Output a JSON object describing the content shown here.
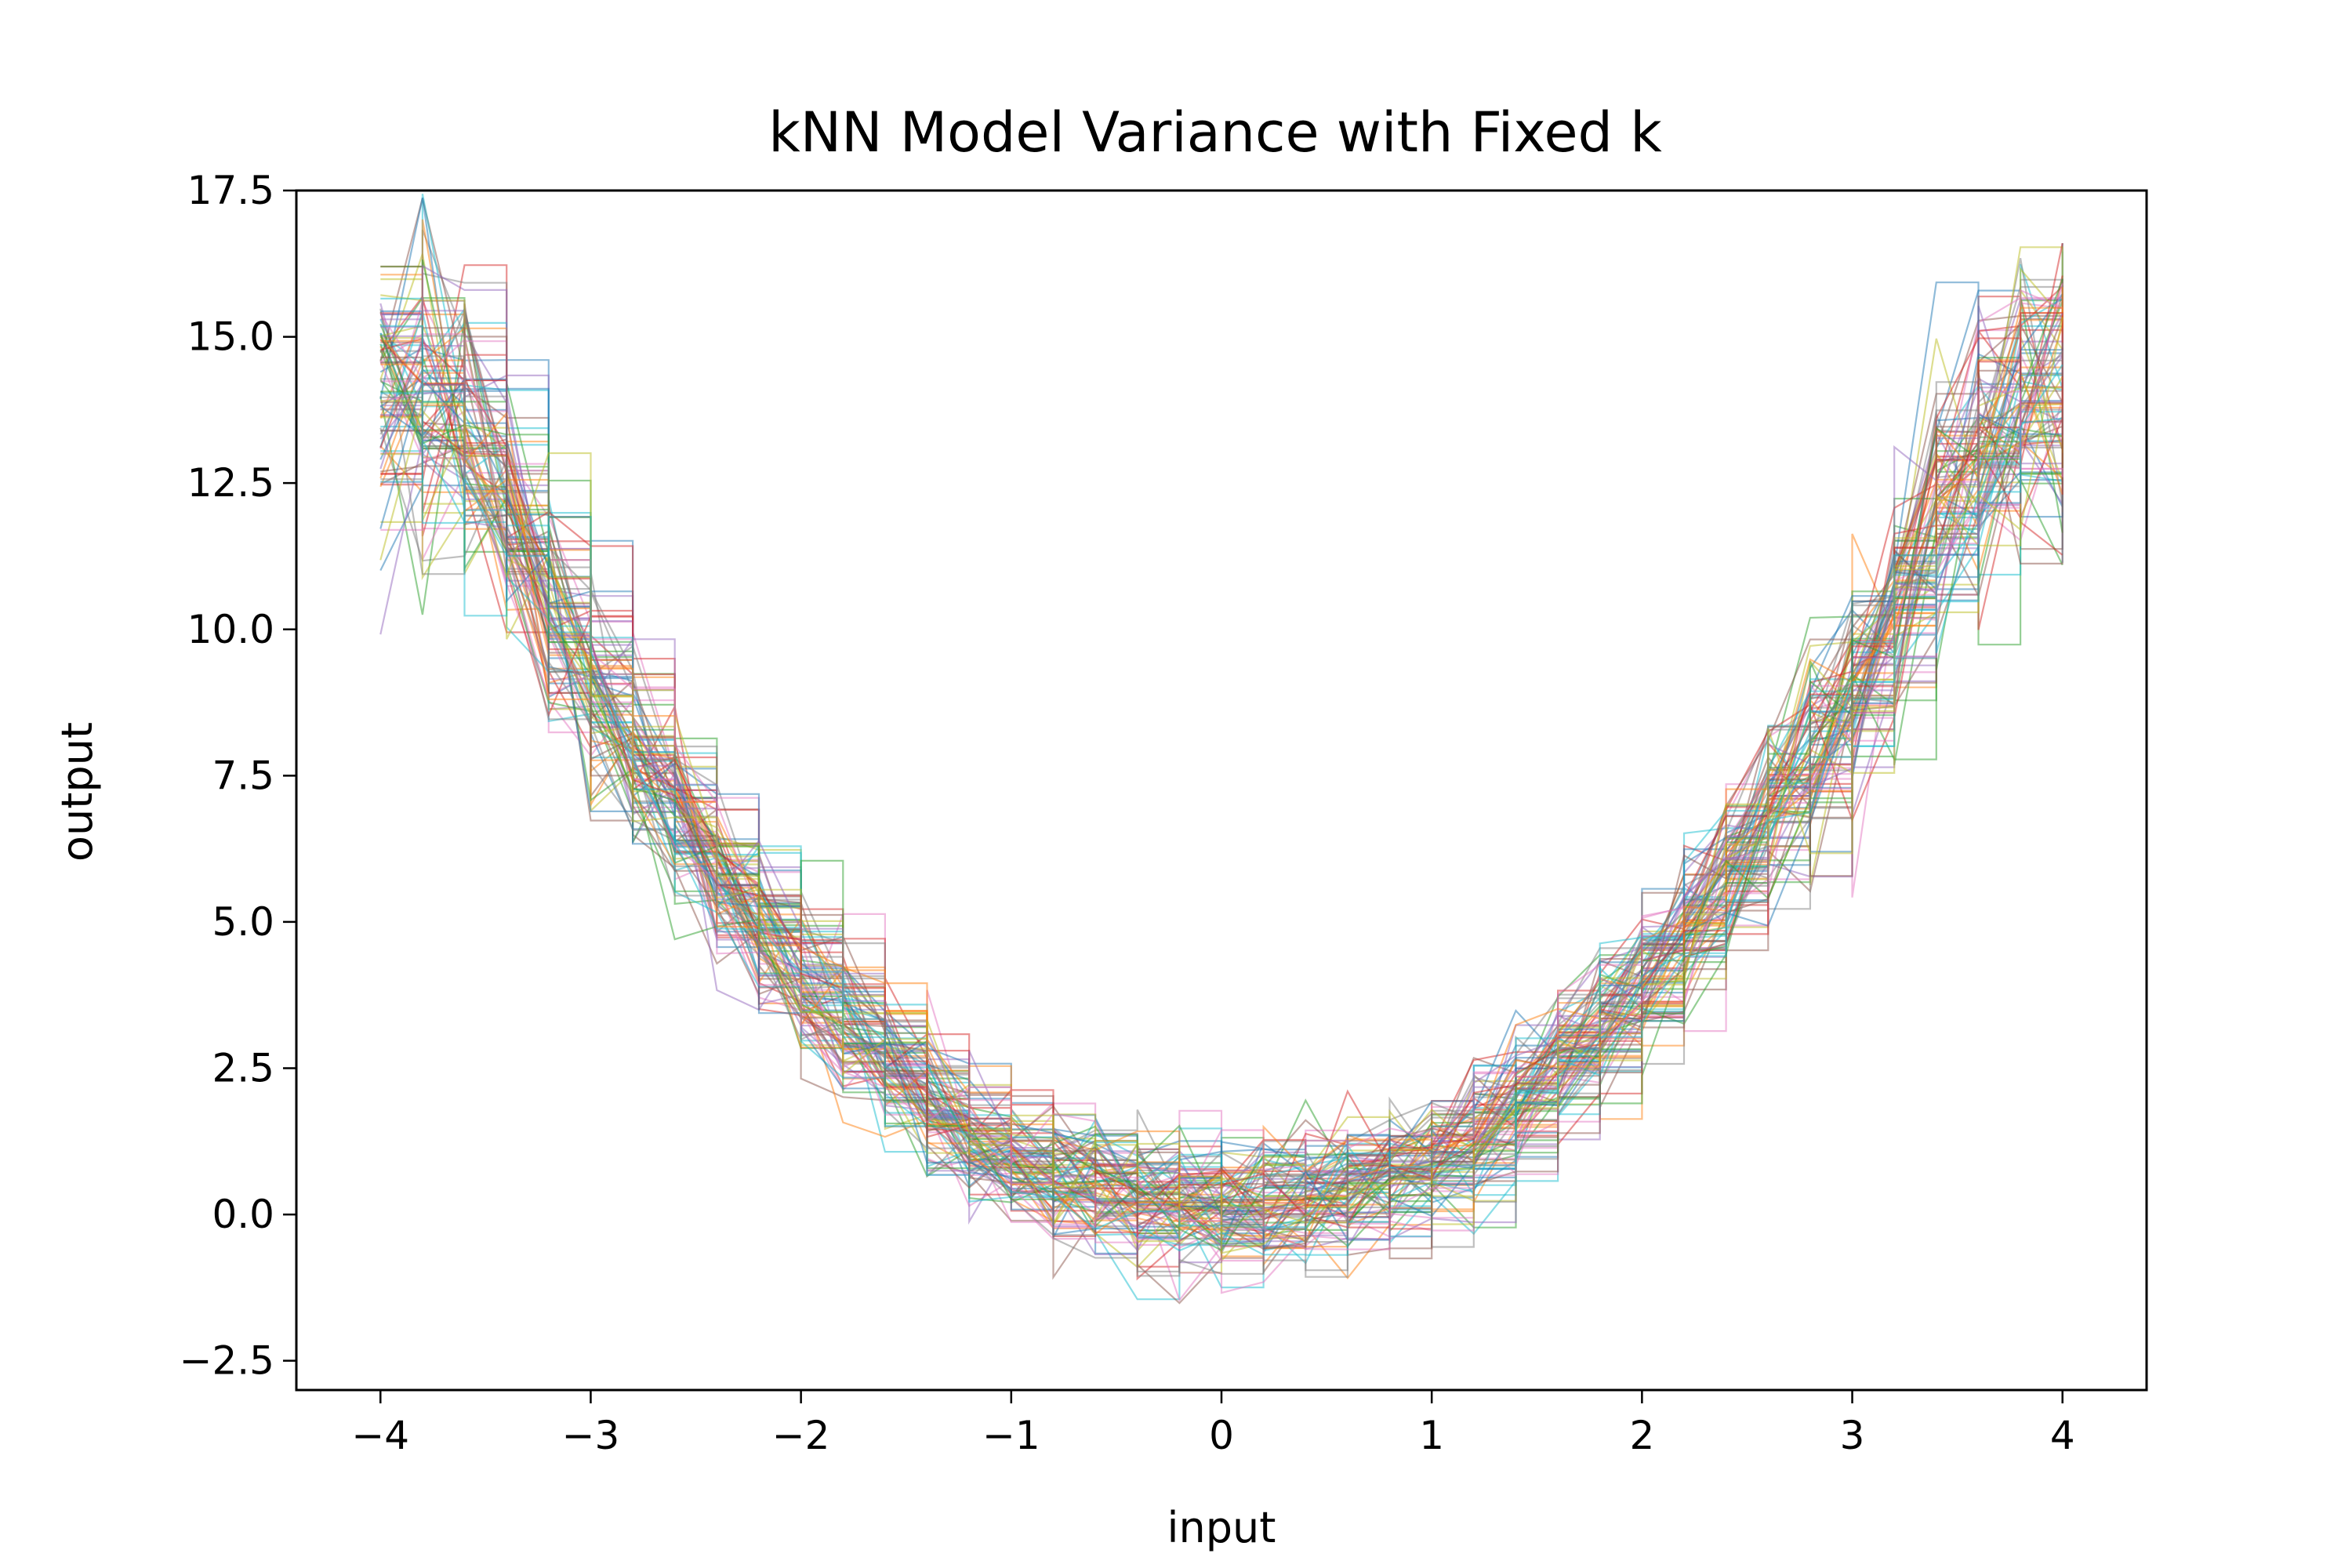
{
  "chart_data": {
    "type": "line",
    "title": "kNN Model Variance with Fixed k",
    "xlabel": "input",
    "ylabel": "output",
    "xlim": [
      -4.4,
      4.4
    ],
    "ylim": [
      -3.0,
      17.5
    ],
    "x_ticks": [
      -4,
      -3,
      -2,
      -1,
      0,
      1,
      2,
      3,
      4
    ],
    "x_tick_labels": [
      "−4",
      "−3",
      "−2",
      "−1",
      "0",
      "1",
      "2",
      "3",
      "4"
    ],
    "y_ticks": [
      -2.5,
      0.0,
      2.5,
      5.0,
      7.5,
      10.0,
      12.5,
      15.0,
      17.5
    ],
    "y_tick_labels": [
      "−2.5",
      "0.0",
      "2.5",
      "5.0",
      "7.5",
      "10.0",
      "12.5",
      "15.0",
      "17.5"
    ],
    "grid": false,
    "legend": "none",
    "series_count": 100,
    "series_colors": [
      "#1f77b4",
      "#ff7f0e",
      "#2ca02c",
      "#d62728",
      "#9467bd",
      "#8c564b",
      "#e377c2",
      "#7f7f7f",
      "#bcbd22",
      "#17becf"
    ],
    "x": [
      -4.0,
      -3.8,
      -3.6,
      -3.4,
      -3.2,
      -3.0,
      -2.8,
      -2.6,
      -2.4,
      -2.2,
      -2.0,
      -1.8,
      -1.6,
      -1.4,
      -1.2,
      -1.0,
      -0.8,
      -0.6,
      -0.4,
      -0.2,
      0.0,
      0.2,
      0.4,
      0.6,
      0.8,
      1.0,
      1.2,
      1.4,
      1.6,
      1.8,
      2.0,
      2.2,
      2.4,
      2.6,
      2.8,
      3.0,
      3.2,
      3.4,
      3.6,
      3.8,
      4.0
    ],
    "mean_curve": [
      14.2,
      14.0,
      13.2,
      12.0,
      10.4,
      9.0,
      7.9,
      6.8,
      5.8,
      4.9,
      4.0,
      3.3,
      2.6,
      1.9,
      1.3,
      0.9,
      0.6,
      0.4,
      0.25,
      0.15,
      0.1,
      0.15,
      0.25,
      0.4,
      0.6,
      0.9,
      1.3,
      1.9,
      2.6,
      3.3,
      4.0,
      4.9,
      5.8,
      6.8,
      7.9,
      9.0,
      10.4,
      12.0,
      13.2,
      14.0,
      14.2
    ],
    "endpoint_spread": {
      "left": [
        9.6,
        16.2
      ],
      "right": [
        10.0,
        16.6
      ]
    }
  }
}
